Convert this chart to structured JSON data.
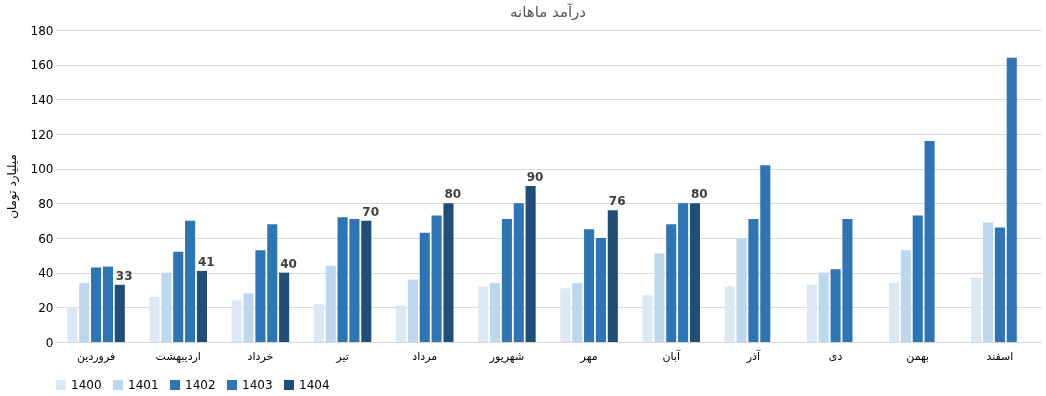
{
  "chart_data": {
    "type": "bar",
    "title": "درآمد ماهانه",
    "ylabel": "میلیارد تومان",
    "categories": [
      "فروردین",
      "اردیبهشت",
      "خرداد",
      "تیر",
      "مرداد",
      "شهریور",
      "مهر",
      "آبان",
      "آذر",
      "دی",
      "بهمن",
      "اسفند"
    ],
    "series": [
      {
        "name": "1400",
        "color": "#dde8f5",
        "values": [
          20,
          26,
          24,
          22,
          21,
          32,
          31,
          27,
          32,
          33,
          34,
          37
        ]
      },
      {
        "name": "1401",
        "color": "#bdd7ee",
        "values": [
          34,
          40,
          28,
          44,
          36,
          34,
          34,
          51,
          60,
          40,
          53,
          69
        ]
      },
      {
        "name": "1402",
        "color": "#2e75b6",
        "values": [
          43,
          52,
          53,
          72,
          63,
          71,
          65,
          68,
          71,
          42,
          73,
          66
        ]
      },
      {
        "name": "1403",
        "color": "#2e75b6",
        "values": [
          43.5,
          70,
          68,
          71,
          73,
          80,
          60,
          80,
          102,
          71,
          116,
          164
        ]
      },
      {
        "name": "1404",
        "color": "#1f4e79",
        "values": [
          33,
          41,
          40,
          70,
          80,
          90,
          76,
          80,
          null,
          null,
          null,
          null
        ],
        "value_labels": [
          "33",
          "41",
          "40",
          "70",
          "80",
          "90",
          "76",
          "80",
          null,
          null,
          null,
          null
        ]
      }
    ],
    "ylim": [
      0,
      180
    ],
    "yticks": [
      0,
      20,
      40,
      60,
      80,
      100,
      120,
      140,
      160,
      180
    ],
    "grid": "y",
    "legend": "bottom"
  }
}
